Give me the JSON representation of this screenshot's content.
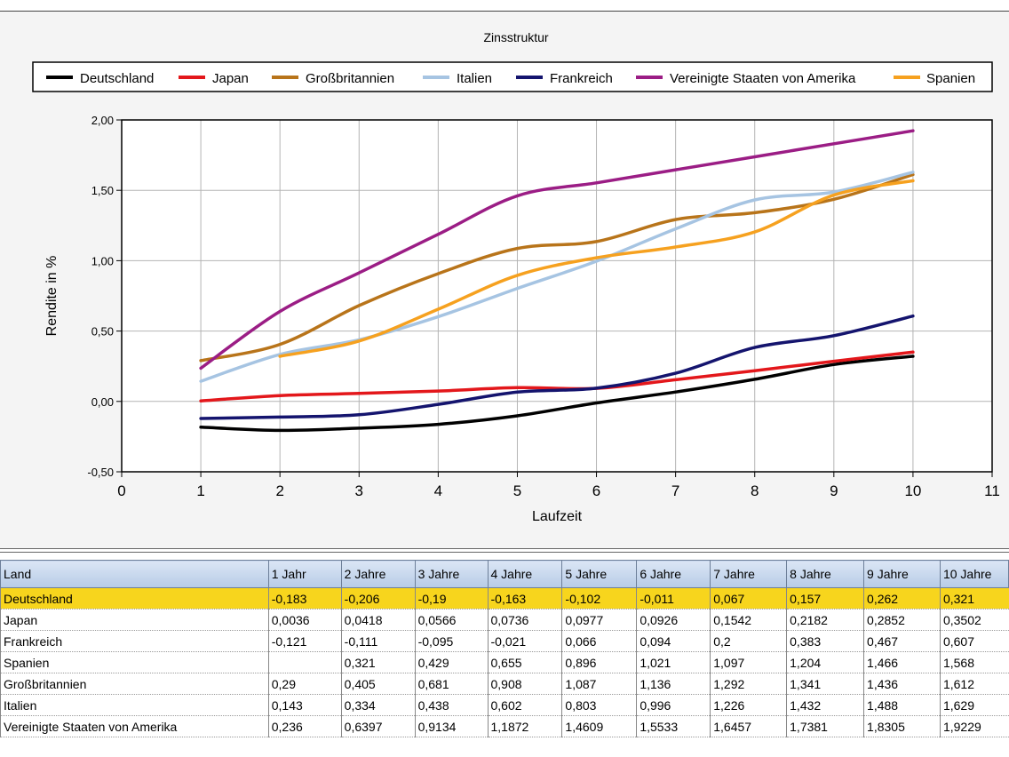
{
  "chart_data": {
    "type": "line",
    "title": "Zinsstruktur",
    "xlabel": "Laufzeit",
    "ylabel": "Rendite in %",
    "xlim": [
      0,
      11
    ],
    "ylim": [
      -0.5,
      2.0
    ],
    "x_ticks": [
      "0",
      "1",
      "2",
      "3",
      "4",
      "5",
      "6",
      "7",
      "8",
      "9",
      "10",
      "11"
    ],
    "y_ticks": [
      "-0,50",
      "0,00",
      "0,50",
      "1,00",
      "1,50",
      "2,00"
    ],
    "grid": true,
    "legend_position": "top",
    "x": [
      1,
      2,
      3,
      4,
      5,
      6,
      7,
      8,
      9,
      10
    ],
    "series": [
      {
        "name": "Deutschland",
        "color": "#000000",
        "values": [
          -0.183,
          -0.206,
          -0.19,
          -0.163,
          -0.102,
          -0.011,
          0.067,
          0.157,
          0.262,
          0.321
        ]
      },
      {
        "name": "Japan",
        "color": "#e3171b",
        "values": [
          0.0036,
          0.0418,
          0.0566,
          0.0736,
          0.0977,
          0.0926,
          0.1542,
          0.2182,
          0.2852,
          0.3502
        ]
      },
      {
        "name": "Großbritannien",
        "color": "#b8741a",
        "values": [
          0.29,
          0.405,
          0.681,
          0.908,
          1.087,
          1.136,
          1.292,
          1.341,
          1.436,
          1.612
        ]
      },
      {
        "name": "Italien",
        "color": "#a6c4e2",
        "values": [
          0.143,
          0.334,
          0.438,
          0.602,
          0.803,
          0.996,
          1.226,
          1.432,
          1.488,
          1.629
        ]
      },
      {
        "name": "Frankreich",
        "color": "#14146e",
        "values": [
          -0.121,
          -0.111,
          -0.095,
          -0.021,
          0.066,
          0.094,
          0.2,
          0.383,
          0.467,
          0.607
        ]
      },
      {
        "name": "Vereinigte Staaten von Amerika",
        "color": "#9b1d85",
        "values": [
          0.236,
          0.6397,
          0.9134,
          1.1872,
          1.4609,
          1.5533,
          1.6457,
          1.7381,
          1.8305,
          1.9229
        ]
      },
      {
        "name": "Spanien",
        "color": "#f6a11f",
        "values": [
          null,
          0.321,
          0.429,
          0.655,
          0.896,
          1.021,
          1.097,
          1.204,
          1.466,
          1.568
        ]
      }
    ]
  },
  "table": {
    "columns": [
      "Land",
      "1 Jahr",
      "2 Jahre",
      "3 Jahre",
      "4 Jahre",
      "5 Jahre",
      "6 Jahre",
      "7 Jahre",
      "8 Jahre",
      "9 Jahre",
      "10 Jahre"
    ],
    "selected_row": 0,
    "rows": [
      [
        "Deutschland",
        "-0,183",
        "-0,206",
        "-0,19",
        "-0,163",
        "-0,102",
        "-0,011",
        "0,067",
        "0,157",
        "0,262",
        "0,321"
      ],
      [
        "Japan",
        "0,0036",
        "0,0418",
        "0,0566",
        "0,0736",
        "0,0977",
        "0,0926",
        "0,1542",
        "0,2182",
        "0,2852",
        "0,3502"
      ],
      [
        "Frankreich",
        "-0,121",
        "-0,111",
        "-0,095",
        "-0,021",
        "0,066",
        "0,094",
        "0,2",
        "0,383",
        "0,467",
        "0,607"
      ],
      [
        "Spanien",
        "",
        "0,321",
        "0,429",
        "0,655",
        "0,896",
        "1,021",
        "1,097",
        "1,204",
        "1,466",
        "1,568"
      ],
      [
        "Großbritannien",
        "0,29",
        "0,405",
        "0,681",
        "0,908",
        "1,087",
        "1,136",
        "1,292",
        "1,341",
        "1,436",
        "1,612"
      ],
      [
        "Italien",
        "0,143",
        "0,334",
        "0,438",
        "0,602",
        "0,803",
        "0,996",
        "1,226",
        "1,432",
        "1,488",
        "1,629"
      ],
      [
        "Vereinigte Staaten von Amerika",
        "0,236",
        "0,6397",
        "0,9134",
        "1,1872",
        "1,4609",
        "1,5533",
        "1,6457",
        "1,7381",
        "1,8305",
        "1,9229"
      ]
    ]
  },
  "colors": {
    "selected_row": "#f7d51d",
    "header_background": "#c6d6ec",
    "plot_background": "#ffffff",
    "chart_background": "#f4f4f4"
  }
}
